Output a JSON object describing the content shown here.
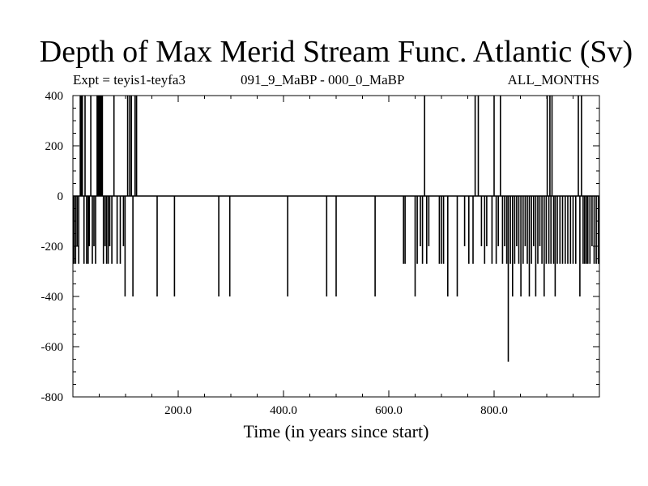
{
  "chart_data": {
    "type": "line",
    "title": "Depth of Max Merid Stream Func. Atlantic (Sv)",
    "subtitle_left": "Expt = teyis1-teyfa3",
    "subtitle_mid": "091_9_MaBP - 000_0_MaBP",
    "subtitle_right": "ALL_MONTHS",
    "xlabel": "Time (in years since start)",
    "ylabel": "",
    "xlim": [
      0,
      1000
    ],
    "ylim": [
      -800,
      400
    ],
    "x_ticks": [
      200,
      400,
      600,
      800
    ],
    "x_tick_labels": [
      "200.0",
      "400.0",
      "600.0",
      "800.0"
    ],
    "y_ticks": [
      400,
      200,
      0,
      -200,
      -400,
      -600,
      -800
    ],
    "y_tick_labels": [
      "400",
      "200",
      "0",
      "-200",
      "-400",
      "-600",
      "-800"
    ],
    "grid": false,
    "series": [
      {
        "color": "#000000",
        "spikes": [
          [
            2,
            -270
          ],
          [
            5,
            -270
          ],
          [
            8,
            -200
          ],
          [
            11,
            -270
          ],
          [
            14,
            400
          ],
          [
            16,
            400
          ],
          [
            18,
            400
          ],
          [
            21,
            -270
          ],
          [
            23,
            400
          ],
          [
            26,
            -270
          ],
          [
            29,
            -270
          ],
          [
            31,
            -200
          ],
          [
            34,
            400
          ],
          [
            37,
            -270
          ],
          [
            40,
            -200
          ],
          [
            43,
            -270
          ],
          [
            46,
            400
          ],
          [
            48,
            400
          ],
          [
            50,
            400
          ],
          [
            52,
            400
          ],
          [
            54,
            400
          ],
          [
            56,
            400
          ],
          [
            58,
            -270
          ],
          [
            61,
            -200
          ],
          [
            64,
            -270
          ],
          [
            67,
            -270
          ],
          [
            70,
            -200
          ],
          [
            74,
            -270
          ],
          [
            78,
            400
          ],
          [
            84,
            -270
          ],
          [
            90,
            -270
          ],
          [
            96,
            -200
          ],
          [
            99,
            -400
          ],
          [
            104,
            400
          ],
          [
            108,
            400
          ],
          [
            111,
            400
          ],
          [
            114,
            -400
          ],
          [
            118,
            400
          ],
          [
            121,
            400
          ],
          [
            160,
            -400
          ],
          [
            193,
            -400
          ],
          [
            277,
            -400
          ],
          [
            298,
            -400
          ],
          [
            408,
            -400
          ],
          [
            482,
            -400
          ],
          [
            500,
            -400
          ],
          [
            574,
            -400
          ],
          [
            628,
            -270
          ],
          [
            631,
            -270
          ],
          [
            650,
            -400
          ],
          [
            654,
            -270
          ],
          [
            660,
            -200
          ],
          [
            664,
            -270
          ],
          [
            668,
            400
          ],
          [
            672,
            -270
          ],
          [
            676,
            -200
          ],
          [
            696,
            -270
          ],
          [
            700,
            -270
          ],
          [
            704,
            -270
          ],
          [
            712,
            -400
          ],
          [
            730,
            -400
          ],
          [
            744,
            -200
          ],
          [
            752,
            -270
          ],
          [
            760,
            -270
          ],
          [
            764,
            400
          ],
          [
            770,
            400
          ],
          [
            776,
            -200
          ],
          [
            782,
            -270
          ],
          [
            786,
            -200
          ],
          [
            796,
            -270
          ],
          [
            800,
            400
          ],
          [
            804,
            -270
          ],
          [
            808,
            -200
          ],
          [
            812,
            400
          ],
          [
            816,
            -270
          ],
          [
            820,
            -200
          ],
          [
            824,
            -270
          ],
          [
            827,
            -660
          ],
          [
            831,
            -270
          ],
          [
            835,
            -400
          ],
          [
            839,
            -270
          ],
          [
            843,
            -200
          ],
          [
            847,
            -270
          ],
          [
            851,
            -400
          ],
          [
            855,
            -270
          ],
          [
            859,
            -200
          ],
          [
            863,
            -270
          ],
          [
            867,
            -400
          ],
          [
            871,
            -270
          ],
          [
            875,
            -200
          ],
          [
            879,
            -400
          ],
          [
            883,
            -270
          ],
          [
            887,
            -200
          ],
          [
            891,
            -270
          ],
          [
            895,
            -400
          ],
          [
            899,
            -270
          ],
          [
            901,
            400
          ],
          [
            904,
            -270
          ],
          [
            906,
            400
          ],
          [
            908,
            -270
          ],
          [
            910,
            400
          ],
          [
            913,
            -270
          ],
          [
            916,
            -400
          ],
          [
            920,
            -270
          ],
          [
            925,
            -270
          ],
          [
            930,
            -270
          ],
          [
            935,
            -270
          ],
          [
            940,
            -270
          ],
          [
            945,
            -270
          ],
          [
            950,
            -270
          ],
          [
            955,
            -270
          ],
          [
            960,
            400
          ],
          [
            963,
            -400
          ],
          [
            966,
            400
          ],
          [
            969,
            -270
          ],
          [
            972,
            -270
          ],
          [
            975,
            -270
          ],
          [
            978,
            -270
          ],
          [
            982,
            -270
          ],
          [
            986,
            -200
          ],
          [
            990,
            -270
          ],
          [
            994,
            -270
          ],
          [
            998,
            -270
          ]
        ]
      }
    ]
  }
}
